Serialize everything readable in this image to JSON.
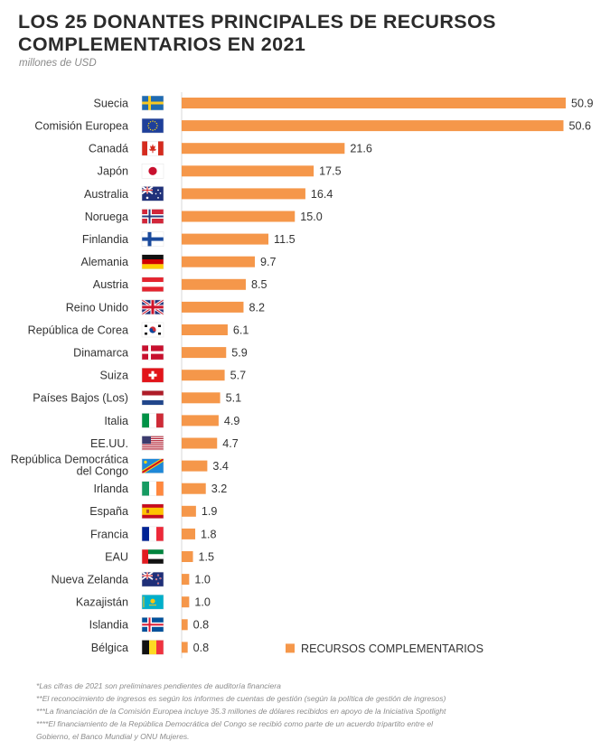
{
  "chart_data": {
    "type": "bar",
    "orientation": "horizontal",
    "title_line1": "LOS 25 DONANTES PRINCIPALES DE RECURSOS",
    "title_line2": "COMPLEMENTARIOS EN 2021",
    "subtitle": "millones de USD",
    "legend_label": "RECURSOS COMPLEMENTARIOS",
    "legend_position": "bottom-right",
    "bar_color": "#F5974A",
    "xlim": [
      0,
      50.9
    ],
    "categories": [
      {
        "label": [
          "Suecia"
        ],
        "value": 50.9,
        "value_label": "50.9",
        "flag": "sweden-flag"
      },
      {
        "label": [
          "Comisión Europea"
        ],
        "value": 50.6,
        "value_label": "50.6",
        "flag": "european-union-flag"
      },
      {
        "label": [
          "Canadá"
        ],
        "value": 21.6,
        "value_label": "21.6",
        "flag": "canada-flag"
      },
      {
        "label": [
          "Japón"
        ],
        "value": 17.5,
        "value_label": "17.5",
        "flag": "japan-flag"
      },
      {
        "label": [
          "Australia"
        ],
        "value": 16.4,
        "value_label": "16.4",
        "flag": "australia-flag"
      },
      {
        "label": [
          "Noruega"
        ],
        "value": 15.0,
        "value_label": "15.0",
        "flag": "norway-flag"
      },
      {
        "label": [
          "Finlandia"
        ],
        "value": 11.5,
        "value_label": "11.5",
        "flag": "finland-flag"
      },
      {
        "label": [
          "Alemania"
        ],
        "value": 9.7,
        "value_label": "9.7",
        "flag": "germany-flag"
      },
      {
        "label": [
          "Austria"
        ],
        "value": 8.5,
        "value_label": "8.5",
        "flag": "austria-flag"
      },
      {
        "label": [
          "Reino Unido"
        ],
        "value": 8.2,
        "value_label": "8.2",
        "flag": "united-kingdom-flag"
      },
      {
        "label": [
          "República de Corea"
        ],
        "value": 6.1,
        "value_label": "6.1",
        "flag": "south-korea-flag"
      },
      {
        "label": [
          "Dinamarca"
        ],
        "value": 5.9,
        "value_label": "5.9",
        "flag": "denmark-flag"
      },
      {
        "label": [
          "Suiza"
        ],
        "value": 5.7,
        "value_label": "5.7",
        "flag": "switzerland-flag"
      },
      {
        "label": [
          "Países Bajos (Los)"
        ],
        "value": 5.1,
        "value_label": "5.1",
        "flag": "netherlands-flag"
      },
      {
        "label": [
          "Italia"
        ],
        "value": 4.9,
        "value_label": "4.9",
        "flag": "italy-flag"
      },
      {
        "label": [
          "EE.UU."
        ],
        "value": 4.7,
        "value_label": "4.7",
        "flag": "usa-flag"
      },
      {
        "label": [
          "República Democrática",
          "del Congo"
        ],
        "value": 3.4,
        "value_label": "3.4",
        "flag": "dr-congo-flag"
      },
      {
        "label": [
          "Irlanda"
        ],
        "value": 3.2,
        "value_label": "3.2",
        "flag": "ireland-flag"
      },
      {
        "label": [
          "España"
        ],
        "value": 1.9,
        "value_label": "1.9",
        "flag": "spain-flag"
      },
      {
        "label": [
          "Francia"
        ],
        "value": 1.8,
        "value_label": "1.8",
        "flag": "france-flag"
      },
      {
        "label": [
          "EAU"
        ],
        "value": 1.5,
        "value_label": "1.5",
        "flag": "uae-flag"
      },
      {
        "label": [
          "Nueva Zelanda"
        ],
        "value": 1.0,
        "value_label": "1.0",
        "flag": "new-zealand-flag"
      },
      {
        "label": [
          "Kazajistán"
        ],
        "value": 1.0,
        "value_label": "1.0",
        "flag": "kazakhstan-flag"
      },
      {
        "label": [
          "Islandia"
        ],
        "value": 0.8,
        "value_label": "0.8",
        "flag": "iceland-flag"
      },
      {
        "label": [
          "Bélgica"
        ],
        "value": 0.8,
        "value_label": "0.8",
        "flag": "belgium-flag"
      }
    ]
  },
  "footnotes": [
    "*Las cifras de 2021 son preliminares pendientes de auditoría financiera",
    "**El reconocimiento de ingresos es según los informes de cuentas de gestión (según la política de gestión de ingresos)",
    "***La financiación de la Comisión Europea incluye 35.3 millones de dólares recibidos en apoyo de la Iniciativa Spotlight",
    "****El financiamiento de la República Democrática del Congo se recibió como parte de un acuerdo tripartito entre el",
    "Gobierno, el Banco Mundial y ONU Mujeres."
  ]
}
